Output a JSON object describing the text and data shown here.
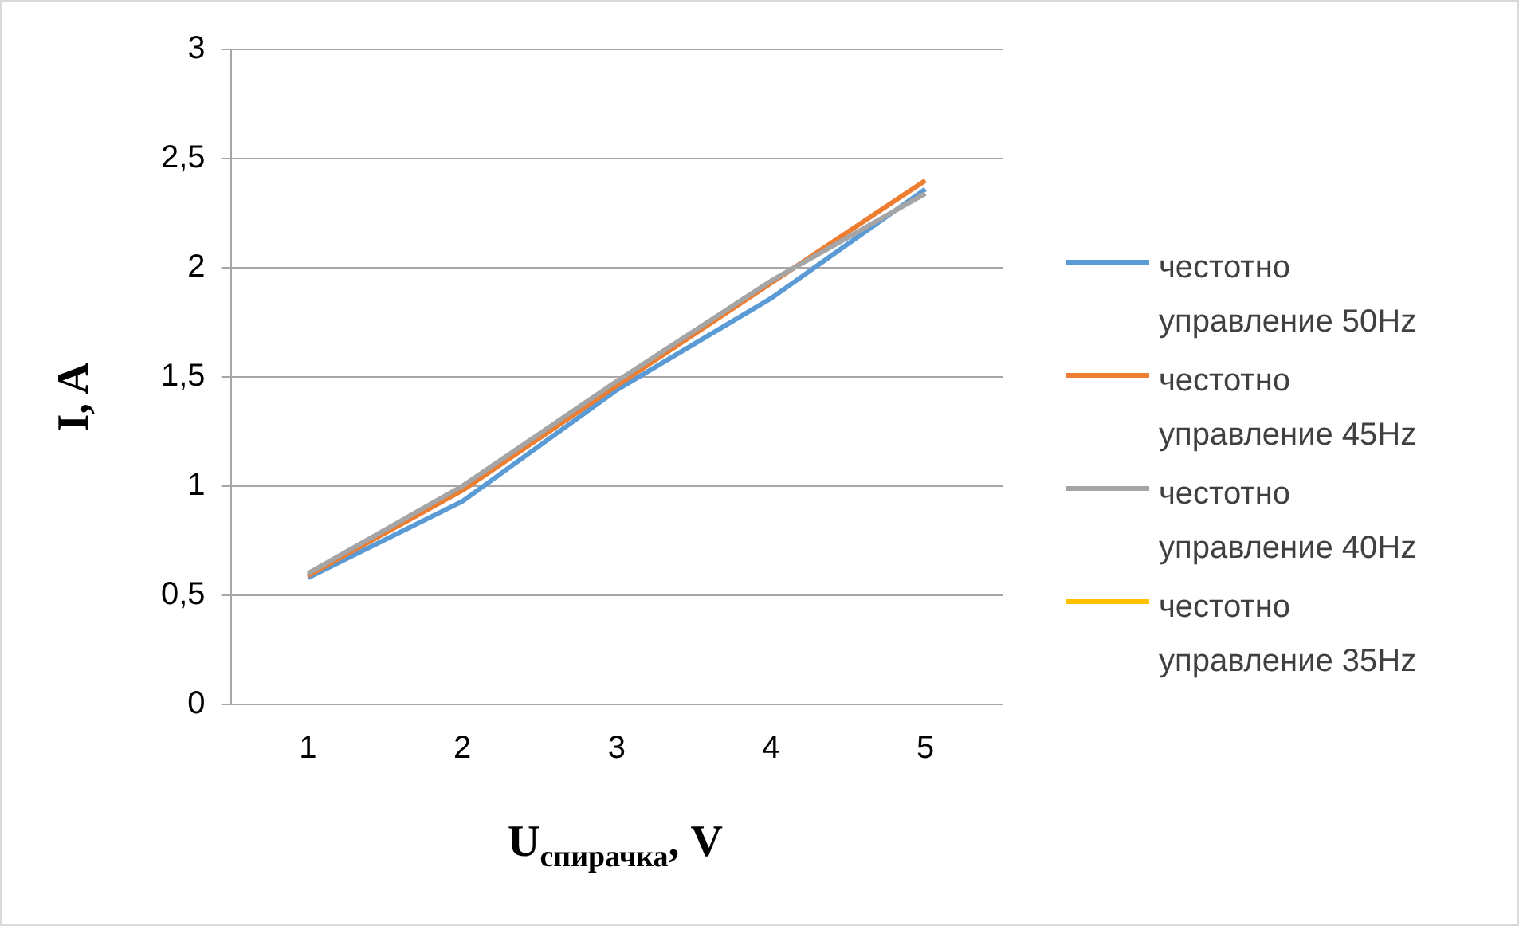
{
  "chart_data": {
    "type": "line",
    "xlabel": "U$_{спирачка}$, V",
    "ylabel": "I, A",
    "categories": [
      "1",
      "2",
      "3",
      "4",
      "5"
    ],
    "ylim": [
      0,
      3
    ],
    "yticks": [
      {
        "value": 0,
        "label": "0"
      },
      {
        "value": 0.5,
        "label": "0,5"
      },
      {
        "value": 1,
        "label": "1"
      },
      {
        "value": 1.5,
        "label": "1,5"
      },
      {
        "value": 2,
        "label": "2"
      },
      {
        "value": 2.5,
        "label": "2,5"
      },
      {
        "value": 3,
        "label": "3"
      }
    ],
    "grid": "y",
    "legend": "right",
    "marker": "none",
    "line_style": "solid",
    "series": [
      {
        "name": "честотно управление 50Hz",
        "color": "#5b9bd5",
        "values": [
          0.58,
          0.93,
          1.44,
          1.86,
          2.36
        ]
      },
      {
        "name": "честотно управление 45Hz",
        "color": "#ed7d31",
        "values": [
          0.59,
          0.98,
          1.46,
          1.93,
          2.4
        ]
      },
      {
        "name": "честотно управление 40Hz",
        "color": "#a5a5a5",
        "values": [
          0.6,
          1.0,
          1.48,
          1.94,
          2.34
        ]
      },
      {
        "name": "честотно управление 35Hz",
        "color": "#ffc000",
        "values": [
          null,
          null,
          null,
          null,
          null
        ]
      }
    ]
  }
}
